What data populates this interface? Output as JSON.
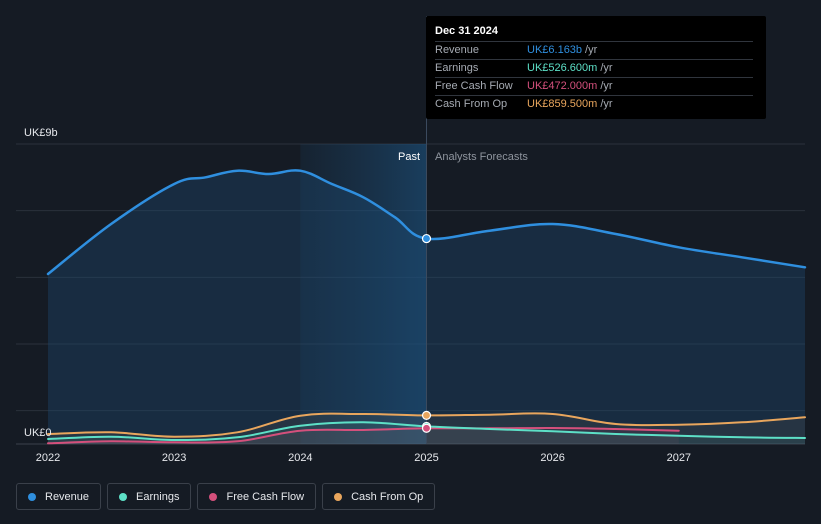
{
  "chart_data": {
    "type": "line",
    "x_ticks": [
      "2022",
      "2023",
      "2024",
      "2025",
      "2026",
      "2027"
    ],
    "y_ticks": [
      "UK£0",
      "UK£9b"
    ],
    "ylim": [
      0,
      9
    ],
    "xlim": [
      2022.0,
      2028.0
    ],
    "regions": {
      "past_label": "Past",
      "forecast_label": "Analysts Forecasts",
      "divider_x": 2025.0
    },
    "series": [
      {
        "name": "Revenue",
        "color": "#2f8fdf",
        "points": [
          [
            2022.0,
            5.1
          ],
          [
            2022.5,
            6.6
          ],
          [
            2023.0,
            7.8
          ],
          [
            2023.25,
            8.0
          ],
          [
            2023.5,
            8.2
          ],
          [
            2023.75,
            8.1
          ],
          [
            2024.0,
            8.2
          ],
          [
            2024.25,
            7.8
          ],
          [
            2024.5,
            7.4
          ],
          [
            2024.75,
            6.8
          ],
          [
            2025.0,
            6.163
          ],
          [
            2025.5,
            6.4
          ],
          [
            2026.0,
            6.6
          ],
          [
            2026.5,
            6.3
          ],
          [
            2027.0,
            5.9
          ],
          [
            2027.5,
            5.6
          ],
          [
            2028.0,
            5.3
          ]
        ]
      },
      {
        "name": "Earnings",
        "color": "#5de0c7",
        "points": [
          [
            2022.0,
            0.15
          ],
          [
            2022.5,
            0.22
          ],
          [
            2023.0,
            0.12
          ],
          [
            2023.5,
            0.2
          ],
          [
            2024.0,
            0.55
          ],
          [
            2024.5,
            0.65
          ],
          [
            2025.0,
            0.5266
          ],
          [
            2025.5,
            0.45
          ],
          [
            2026.0,
            0.38
          ],
          [
            2026.5,
            0.3
          ],
          [
            2027.0,
            0.25
          ],
          [
            2027.5,
            0.2
          ],
          [
            2028.0,
            0.18
          ]
        ]
      },
      {
        "name": "Free Cash Flow",
        "color": "#d4507c",
        "points": [
          [
            2022.0,
            0.02
          ],
          [
            2022.5,
            0.08
          ],
          [
            2023.0,
            0.05
          ],
          [
            2023.5,
            0.08
          ],
          [
            2024.0,
            0.4
          ],
          [
            2024.5,
            0.42
          ],
          [
            2025.0,
            0.472
          ],
          [
            2025.5,
            0.47
          ],
          [
            2026.0,
            0.48
          ],
          [
            2026.5,
            0.45
          ],
          [
            2027.0,
            0.4
          ]
        ]
      },
      {
        "name": "Cash From Op",
        "color": "#e9a65d",
        "points": [
          [
            2022.0,
            0.3
          ],
          [
            2022.5,
            0.35
          ],
          [
            2023.0,
            0.22
          ],
          [
            2023.5,
            0.35
          ],
          [
            2024.0,
            0.85
          ],
          [
            2024.5,
            0.9
          ],
          [
            2025.0,
            0.8595
          ],
          [
            2025.5,
            0.88
          ],
          [
            2026.0,
            0.9
          ],
          [
            2026.5,
            0.6
          ],
          [
            2027.0,
            0.58
          ],
          [
            2027.5,
            0.65
          ],
          [
            2028.0,
            0.8
          ]
        ]
      }
    ]
  },
  "tooltip": {
    "date": "Dec 31 2024",
    "rows": [
      {
        "name": "Revenue",
        "value": "UK£6.163b",
        "unit": "/yr",
        "color": "#2f8fdf"
      },
      {
        "name": "Earnings",
        "value": "UK£526.600m",
        "unit": "/yr",
        "color": "#5de0c7"
      },
      {
        "name": "Free Cash Flow",
        "value": "UK£472.000m",
        "unit": "/yr",
        "color": "#d4507c"
      },
      {
        "name": "Cash From Op",
        "value": "UK£859.500m",
        "unit": "/yr",
        "color": "#e9a65d"
      }
    ]
  },
  "legend": [
    {
      "name": "Revenue",
      "color": "#2f8fdf"
    },
    {
      "name": "Earnings",
      "color": "#5de0c7"
    },
    {
      "name": "Free Cash Flow",
      "color": "#d4507c"
    },
    {
      "name": "Cash From Op",
      "color": "#e9a65d"
    }
  ]
}
